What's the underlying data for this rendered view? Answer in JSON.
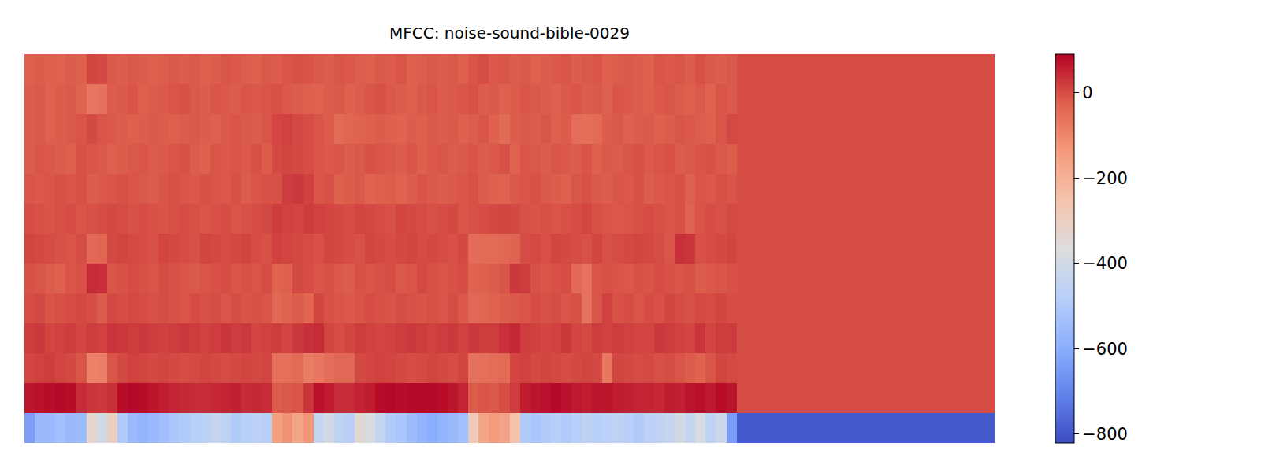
{
  "chart_data": {
    "type": "heatmap",
    "title": "MFCC: noise-sound-bible-0029",
    "tick_labels": false,
    "zlim": [
      -821,
      90
    ],
    "zticks": [
      -800,
      -600,
      -400,
      -200,
      0
    ],
    "cells": [
      [
        -640,
        -560,
        -560,
        -540,
        -560,
        -550,
        -330,
        -400,
        -300,
        -500,
        -560,
        -580,
        -560,
        -540,
        -520,
        -500,
        -480,
        -470,
        -440,
        -460,
        -500,
        -480,
        -470,
        -480,
        -150,
        -120,
        -170,
        -130,
        -440,
        -400,
        -460,
        -480,
        -340,
        -380,
        -440,
        -500,
        -520,
        -550,
        -580,
        -600,
        -580,
        -560,
        -540,
        -280,
        -170,
        -140,
        -160,
        -250,
        -500,
        -520,
        -500,
        -480,
        -500,
        -480,
        -460,
        -480,
        -470,
        -460,
        -480,
        -500,
        -470,
        -460,
        -440,
        -400,
        -440,
        -380,
        -460,
        -420,
        -640,
        -790,
        -790,
        -790,
        -790,
        -790,
        -790,
        -790,
        -790,
        -790,
        -790,
        -790,
        -790,
        -790,
        -790,
        -790,
        -790,
        -790,
        -790,
        -790,
        -790,
        -790,
        -790,
        -790,
        -790,
        -790
      ],
      [
        70,
        75,
        80,
        85,
        80,
        40,
        30,
        25,
        35,
        80,
        85,
        80,
        70,
        60,
        50,
        45,
        40,
        40,
        45,
        50,
        55,
        40,
        45,
        40,
        -20,
        -15,
        -10,
        30,
        75,
        60,
        40,
        40,
        50,
        60,
        80,
        85,
        80,
        85,
        85,
        85,
        80,
        70,
        50,
        -20,
        -10,
        -15,
        0,
        20,
        60,
        70,
        75,
        85,
        75,
        65,
        60,
        70,
        70,
        60,
        55,
        50,
        50,
        45,
        60,
        55,
        70,
        75,
        65,
        80,
        70,
        0,
        0,
        0,
        0,
        0,
        0,
        0,
        0,
        0,
        0,
        0,
        0,
        0,
        0,
        0,
        0,
        0,
        0,
        0,
        0,
        0,
        0,
        0,
        0,
        0
      ],
      [
        10,
        15,
        20,
        10,
        5,
        -10,
        -90,
        -85,
        -10,
        5,
        15,
        10,
        5,
        10,
        5,
        0,
        5,
        10,
        5,
        0,
        5,
        10,
        5,
        10,
        -60,
        -55,
        -45,
        -80,
        -70,
        -50,
        -40,
        -40,
        5,
        10,
        15,
        10,
        5,
        0,
        5,
        10,
        5,
        0,
        10,
        -60,
        -55,
        -50,
        -45,
        10,
        15,
        5,
        10,
        5,
        0,
        5,
        10,
        5,
        -70,
        10,
        5,
        0,
        5,
        -5,
        0,
        -10,
        -20,
        -30,
        -10,
        10,
        5,
        0,
        0,
        0,
        0,
        0,
        0,
        0,
        0,
        0,
        0,
        0,
        0,
        0,
        0,
        0,
        0,
        0,
        0,
        0,
        0,
        0,
        0,
        0,
        0,
        0
      ],
      [
        20,
        25,
        10,
        15,
        20,
        10,
        20,
        15,
        30,
        25,
        20,
        25,
        20,
        15,
        20,
        25,
        20,
        15,
        20,
        30,
        20,
        25,
        10,
        15,
        20,
        10,
        25,
        35,
        40,
        10,
        0,
        10,
        20,
        15,
        10,
        15,
        20,
        25,
        20,
        15,
        20,
        25,
        15,
        25,
        20,
        20,
        35,
        45,
        20,
        15,
        10,
        15,
        25,
        10,
        5,
        20,
        15,
        20,
        15,
        10,
        10,
        25,
        20,
        15,
        10,
        30,
        10,
        20,
        20,
        0,
        0,
        0,
        0,
        0,
        0,
        0,
        0,
        0,
        0,
        0,
        0,
        0,
        0,
        0,
        0,
        0,
        0,
        0,
        0,
        0,
        0,
        0,
        0,
        0
      ],
      [
        0,
        5,
        -10,
        -5,
        0,
        5,
        0,
        -20,
        5,
        0,
        5,
        0,
        -5,
        0,
        -5,
        -10,
        0,
        -5,
        0,
        -10,
        0,
        -10,
        -5,
        -10,
        -40,
        -30,
        -20,
        -35,
        10,
        -5,
        -10,
        -15,
        -10,
        0,
        -5,
        -10,
        0,
        -5,
        -10,
        -5,
        -10,
        0,
        -15,
        -40,
        -35,
        -30,
        -20,
        -15,
        -10,
        0,
        -5,
        0,
        -10,
        -5,
        -60,
        -10,
        15,
        -5,
        0,
        -10,
        0,
        -5,
        10,
        0,
        -5,
        5,
        0,
        10,
        0,
        0,
        0,
        0,
        0,
        0,
        0,
        0,
        0,
        0,
        0,
        0,
        0,
        0,
        0,
        0,
        0,
        0,
        0,
        0,
        0,
        0,
        0,
        0,
        0,
        0
      ],
      [
        -5,
        -10,
        -20,
        -25,
        -10,
        -5,
        40,
        35,
        -10,
        -5,
        0,
        -5,
        -10,
        0,
        -5,
        -10,
        -15,
        -10,
        -5,
        0,
        -10,
        -5,
        -10,
        0,
        -30,
        -25,
        5,
        0,
        -10,
        -5,
        -15,
        -20,
        -5,
        -10,
        -5,
        0,
        -15,
        -10,
        5,
        -5,
        -10,
        -5,
        0,
        -30,
        -25,
        -20,
        -10,
        25,
        20,
        -5,
        -10,
        -5,
        0,
        -40,
        -60,
        -10,
        -5,
        -10,
        -15,
        -5,
        -10,
        0,
        -5,
        -10,
        -5,
        -20,
        -15,
        -10,
        -5,
        0,
        0,
        0,
        0,
        0,
        0,
        0,
        0,
        0,
        0,
        0,
        0,
        0,
        0,
        0,
        0,
        0,
        0,
        0,
        0,
        0,
        0,
        0,
        0,
        0
      ],
      [
        10,
        5,
        0,
        -5,
        -10,
        0,
        -40,
        -35,
        5,
        10,
        5,
        0,
        -5,
        10,
        5,
        0,
        -5,
        10,
        5,
        0,
        5,
        10,
        0,
        -5,
        15,
        10,
        5,
        0,
        -5,
        10,
        5,
        0,
        -5,
        10,
        5,
        0,
        5,
        10,
        0,
        5,
        0,
        -5,
        5,
        -50,
        -45,
        -45,
        -40,
        -30,
        0,
        5,
        -5,
        10,
        5,
        0,
        -5,
        10,
        -5,
        0,
        5,
        10,
        5,
        0,
        -10,
        35,
        30,
        -5,
        0,
        5,
        10,
        0,
        0,
        0,
        0,
        0,
        0,
        0,
        0,
        0,
        0,
        0,
        0,
        0,
        0,
        0,
        0,
        0,
        0,
        0,
        0,
        0,
        0,
        0,
        0,
        0
      ],
      [
        0,
        -5,
        -10,
        -5,
        0,
        -10,
        -5,
        0,
        5,
        0,
        -5,
        0,
        -5,
        -10,
        -5,
        0,
        -5,
        -10,
        -5,
        0,
        -10,
        -5,
        0,
        5,
        20,
        15,
        10,
        20,
        15,
        10,
        5,
        0,
        10,
        5,
        0,
        -5,
        10,
        5,
        0,
        -5,
        0,
        5,
        -10,
        -5,
        0,
        5,
        10,
        5,
        -5,
        -10,
        -5,
        -10,
        -5,
        0,
        10,
        -5,
        -10,
        -15,
        -10,
        -5,
        0,
        -5,
        -10,
        -5,
        -30,
        -10,
        0,
        -5,
        5,
        0,
        0,
        0,
        0,
        0,
        0,
        0,
        0,
        0,
        0,
        0,
        0,
        0,
        0,
        0,
        0,
        0,
        0,
        0,
        0,
        0,
        0,
        0,
        0,
        0
      ],
      [
        -10,
        -15,
        -10,
        -5,
        -10,
        -5,
        -20,
        -15,
        -10,
        -5,
        -10,
        -15,
        -20,
        -10,
        -5,
        -10,
        -15,
        -5,
        -10,
        -15,
        -5,
        -20,
        -10,
        -5,
        -5,
        20,
        25,
        15,
        -10,
        -5,
        -25,
        -20,
        -15,
        -30,
        -25,
        -20,
        -30,
        -20,
        -10,
        -15,
        -20,
        -15,
        -10,
        -5,
        -20,
        -25,
        -30,
        -15,
        -10,
        -5,
        -15,
        -20,
        -25,
        -10,
        -5,
        -15,
        -20,
        -10,
        -15,
        -5,
        -20,
        -15,
        -10,
        -5,
        -25,
        -10,
        -15,
        -5,
        -10,
        0,
        0,
        0,
        0,
        0,
        0,
        0,
        0,
        0,
        0,
        0,
        0,
        0,
        0,
        0,
        0,
        0,
        0,
        0,
        0,
        0,
        0,
        0,
        0,
        0
      ],
      [
        -20,
        -10,
        -15,
        -20,
        -25,
        -5,
        -10,
        -15,
        -25,
        -20,
        -15,
        -10,
        -20,
        -15,
        -10,
        -5,
        -20,
        -25,
        -10,
        -15,
        -10,
        -15,
        -5,
        -20,
        5,
        10,
        5,
        0,
        -10,
        -15,
        -10,
        -20,
        -15,
        -5,
        -10,
        -15,
        -20,
        -10,
        -25,
        -15,
        -10,
        -20,
        -15,
        -10,
        -20,
        -15,
        -5,
        -30,
        -10,
        -15,
        -20,
        -10,
        -15,
        -20,
        -10,
        -25,
        -15,
        -20,
        -10,
        -5,
        -15,
        -10,
        -5,
        -20,
        -15,
        -10,
        -5,
        -15,
        -20,
        0,
        0,
        0,
        0,
        0,
        0,
        0,
        0,
        0,
        0,
        0,
        0,
        0,
        0,
        0,
        0,
        0,
        0,
        0,
        0,
        0,
        0,
        0,
        0,
        0
      ],
      [
        -20,
        -15,
        -25,
        -20,
        -15,
        -10,
        5,
        -10,
        -15,
        -20,
        -25,
        -20,
        -15,
        -20,
        -25,
        -20,
        -15,
        -20,
        -25,
        -15,
        -10,
        -15,
        -20,
        -10,
        10,
        15,
        5,
        0,
        -10,
        -20,
        -45,
        -35,
        -30,
        -25,
        -20,
        -25,
        -30,
        -20,
        -25,
        -15,
        -20,
        -15,
        -25,
        -20,
        -10,
        -25,
        -45,
        -20,
        -15,
        -20,
        -10,
        -25,
        -20,
        -50,
        -55,
        -45,
        -20,
        -15,
        -25,
        -20,
        -15,
        -25,
        -20,
        -10,
        -15,
        -20,
        -25,
        -10,
        5,
        0,
        0,
        0,
        0,
        0,
        0,
        0,
        0,
        0,
        0,
        0,
        0,
        0,
        0,
        0,
        0,
        0,
        0,
        0,
        0,
        0,
        0,
        0,
        0,
        0
      ],
      [
        -20,
        -15,
        -25,
        -20,
        -15,
        -30,
        -70,
        -60,
        -20,
        -15,
        -10,
        -25,
        -20,
        -15,
        -10,
        -5,
        -15,
        -20,
        -10,
        -15,
        -20,
        -10,
        -15,
        -10,
        -5,
        -15,
        -20,
        -25,
        -30,
        -20,
        -15,
        -25,
        -20,
        -10,
        -5,
        -15,
        -20,
        -25,
        -15,
        -10,
        -20,
        -15,
        -10,
        -5,
        -20,
        -15,
        -25,
        -20,
        -10,
        -15,
        -20,
        -25,
        -15,
        -10,
        -20,
        -15,
        -25,
        -10,
        -15,
        -20,
        -25,
        -15,
        -10,
        -20,
        -25,
        -15,
        -30,
        -10,
        -15,
        0,
        0,
        0,
        0,
        0,
        0,
        0,
        0,
        0,
        0,
        0,
        0,
        0,
        0,
        0,
        0,
        0,
        0,
        0,
        0,
        0,
        0,
        0,
        0,
        0
      ],
      [
        -25,
        -20,
        -25,
        -30,
        -20,
        -25,
        10,
        5,
        -15,
        -20,
        -15,
        -20,
        -25,
        -20,
        -15,
        -20,
        -15,
        -25,
        -20,
        -10,
        -15,
        -20,
        -25,
        -15,
        -20,
        -10,
        -5,
        -10,
        -15,
        -20,
        -10,
        -15,
        -20,
        -25,
        -15,
        -20,
        -10,
        -25,
        -20,
        -15,
        -20,
        -15,
        -25,
        -10,
        0,
        -15,
        -10,
        -20,
        -15,
        -25,
        -20,
        -15,
        -10,
        -20,
        -15,
        -10,
        -25,
        -20,
        -15,
        -20,
        -25,
        -10,
        -15,
        -10,
        -20,
        -5,
        -15,
        -20,
        -15,
        0,
        0,
        0,
        0,
        0,
        0,
        0,
        0,
        0,
        0,
        0,
        0,
        0,
        0,
        0,
        0,
        0,
        0,
        0,
        0,
        0,
        0,
        0,
        0,
        0
      ]
    ]
  }
}
